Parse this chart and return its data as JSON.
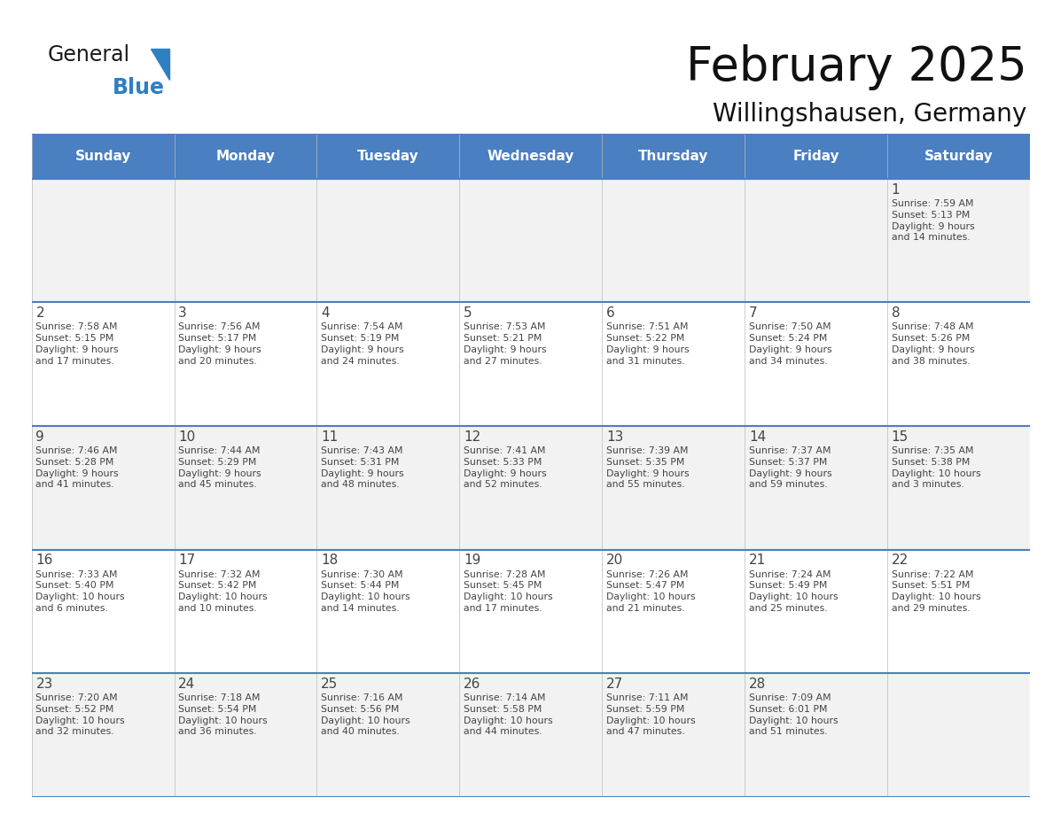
{
  "title": "February 2025",
  "subtitle": "Willingshausen, Germany",
  "days_of_week": [
    "Sunday",
    "Monday",
    "Tuesday",
    "Wednesday",
    "Thursday",
    "Friday",
    "Saturday"
  ],
  "header_bg": "#4a7fc1",
  "header_text_color": "#FFFFFF",
  "cell_bg_odd": "#F2F2F2",
  "cell_bg_even": "#FFFFFF",
  "line_color": "#4a7fc1",
  "text_color": "#444444",
  "title_color": "#111111",
  "subtitle_color": "#111111",
  "calendar_data": [
    [
      null,
      null,
      null,
      null,
      null,
      null,
      {
        "day": 1,
        "sunrise": "7:59 AM",
        "sunset": "5:13 PM",
        "daylight": "9 hours\nand 14 minutes."
      }
    ],
    [
      {
        "day": 2,
        "sunrise": "7:58 AM",
        "sunset": "5:15 PM",
        "daylight": "9 hours\nand 17 minutes."
      },
      {
        "day": 3,
        "sunrise": "7:56 AM",
        "sunset": "5:17 PM",
        "daylight": "9 hours\nand 20 minutes."
      },
      {
        "day": 4,
        "sunrise": "7:54 AM",
        "sunset": "5:19 PM",
        "daylight": "9 hours\nand 24 minutes."
      },
      {
        "day": 5,
        "sunrise": "7:53 AM",
        "sunset": "5:21 PM",
        "daylight": "9 hours\nand 27 minutes."
      },
      {
        "day": 6,
        "sunrise": "7:51 AM",
        "sunset": "5:22 PM",
        "daylight": "9 hours\nand 31 minutes."
      },
      {
        "day": 7,
        "sunrise": "7:50 AM",
        "sunset": "5:24 PM",
        "daylight": "9 hours\nand 34 minutes."
      },
      {
        "day": 8,
        "sunrise": "7:48 AM",
        "sunset": "5:26 PM",
        "daylight": "9 hours\nand 38 minutes."
      }
    ],
    [
      {
        "day": 9,
        "sunrise": "7:46 AM",
        "sunset": "5:28 PM",
        "daylight": "9 hours\nand 41 minutes."
      },
      {
        "day": 10,
        "sunrise": "7:44 AM",
        "sunset": "5:29 PM",
        "daylight": "9 hours\nand 45 minutes."
      },
      {
        "day": 11,
        "sunrise": "7:43 AM",
        "sunset": "5:31 PM",
        "daylight": "9 hours\nand 48 minutes."
      },
      {
        "day": 12,
        "sunrise": "7:41 AM",
        "sunset": "5:33 PM",
        "daylight": "9 hours\nand 52 minutes."
      },
      {
        "day": 13,
        "sunrise": "7:39 AM",
        "sunset": "5:35 PM",
        "daylight": "9 hours\nand 55 minutes."
      },
      {
        "day": 14,
        "sunrise": "7:37 AM",
        "sunset": "5:37 PM",
        "daylight": "9 hours\nand 59 minutes."
      },
      {
        "day": 15,
        "sunrise": "7:35 AM",
        "sunset": "5:38 PM",
        "daylight": "10 hours\nand 3 minutes."
      }
    ],
    [
      {
        "day": 16,
        "sunrise": "7:33 AM",
        "sunset": "5:40 PM",
        "daylight": "10 hours\nand 6 minutes."
      },
      {
        "day": 17,
        "sunrise": "7:32 AM",
        "sunset": "5:42 PM",
        "daylight": "10 hours\nand 10 minutes."
      },
      {
        "day": 18,
        "sunrise": "7:30 AM",
        "sunset": "5:44 PM",
        "daylight": "10 hours\nand 14 minutes."
      },
      {
        "day": 19,
        "sunrise": "7:28 AM",
        "sunset": "5:45 PM",
        "daylight": "10 hours\nand 17 minutes."
      },
      {
        "day": 20,
        "sunrise": "7:26 AM",
        "sunset": "5:47 PM",
        "daylight": "10 hours\nand 21 minutes."
      },
      {
        "day": 21,
        "sunrise": "7:24 AM",
        "sunset": "5:49 PM",
        "daylight": "10 hours\nand 25 minutes."
      },
      {
        "day": 22,
        "sunrise": "7:22 AM",
        "sunset": "5:51 PM",
        "daylight": "10 hours\nand 29 minutes."
      }
    ],
    [
      {
        "day": 23,
        "sunrise": "7:20 AM",
        "sunset": "5:52 PM",
        "daylight": "10 hours\nand 32 minutes."
      },
      {
        "day": 24,
        "sunrise": "7:18 AM",
        "sunset": "5:54 PM",
        "daylight": "10 hours\nand 36 minutes."
      },
      {
        "day": 25,
        "sunrise": "7:16 AM",
        "sunset": "5:56 PM",
        "daylight": "10 hours\nand 40 minutes."
      },
      {
        "day": 26,
        "sunrise": "7:14 AM",
        "sunset": "5:58 PM",
        "daylight": "10 hours\nand 44 minutes."
      },
      {
        "day": 27,
        "sunrise": "7:11 AM",
        "sunset": "5:59 PM",
        "daylight": "10 hours\nand 47 minutes."
      },
      {
        "day": 28,
        "sunrise": "7:09 AM",
        "sunset": "6:01 PM",
        "daylight": "10 hours\nand 51 minutes."
      },
      null
    ]
  ],
  "logo_color_general": "#1a1a1a",
  "logo_color_blue": "#2e7fc2",
  "logo_triangle_color": "#2e7fc2",
  "fig_width": 11.88,
  "fig_height": 9.18,
  "dpi": 100
}
